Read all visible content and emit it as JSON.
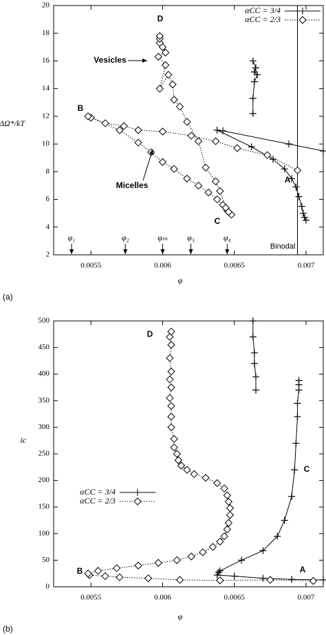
{
  "chart_data": [
    {
      "type": "line",
      "panel_label": "(a)",
      "xlabel": "φ",
      "ylabel": "ΔΩ*/kT",
      "xlim": [
        0.00524,
        0.00712
      ],
      "xticks": [
        0.0055,
        0.006,
        0.0065,
        0.007
      ],
      "ylim": [
        2,
        20
      ],
      "yticks": [
        2,
        4,
        6,
        8,
        10,
        12,
        14,
        16,
        18,
        20
      ],
      "legend": "upper right",
      "series": [
        {
          "name": "αCC = 3/4",
          "color": "#000000",
          "marker": "plus",
          "linestyle": "solid",
          "x": [
            0.00712,
            0.00688,
            0.00642,
            0.00638,
            0.00662,
            0.00677,
            0.00685,
            0.0069,
            0.00693,
            0.00695,
            0.00697,
            0.00698,
            0.00699,
            0.007,
            null,
            0.00663,
            0.00665,
            0.00664,
            0.00666,
            0.00664,
            0.00663,
            0.00663
          ],
          "values": [
            9.5,
            10.0,
            10.95,
            11.0,
            9.8,
            8.9,
            8.2,
            7.5,
            6.9,
            6.2,
            5.5,
            5.0,
            4.7,
            4.5,
            null,
            16.0,
            15.5,
            15.2,
            15.0,
            14.5,
            13.3,
            12.2
          ]
        },
        {
          "name": "αCC = 2/3",
          "color": "#000000",
          "marker": "diamond",
          "linestyle": "dotted",
          "x": [
            0.00694,
            0.00673,
            0.00652,
            0.00637,
            0.0062,
            0.006,
            0.00583,
            0.00573,
            0.0056,
            0.0055,
            0.00548,
            0.0057,
            0.00583,
            0.00592,
            0.006,
            0.00608,
            0.00617,
            0.00625,
            0.00632,
            0.00638,
            0.00642,
            0.00645,
            0.00647,
            0.00648,
            0.00646,
            0.00644,
            0.0064,
            0.00637,
            0.0063,
            0.00625,
            0.00617,
            0.00612,
            0.00608,
            0.00607,
            0.00604,
            0.00598,
            0.00602,
            0.00597,
            0.00602,
            0.006,
            0.00598,
            0.00598,
            0.00598
          ],
          "values": [
            8.1,
            9.2,
            9.7,
            10.2,
            10.6,
            10.9,
            11.0,
            11.3,
            11.5,
            11.9,
            12.0,
            11.0,
            10.1,
            9.4,
            8.7,
            8.2,
            7.5,
            7.0,
            6.5,
            6.0,
            5.6,
            5.2,
            5.0,
            4.9,
            5.1,
            5.4,
            6.6,
            7.3,
            8.3,
            10.2,
            11.6,
            12.7,
            13.2,
            14.3,
            15.0,
            14.0,
            15.7,
            16.3,
            16.6,
            17.0,
            17.3,
            17.6,
            17.8
          ]
        }
      ],
      "annotations": [
        "D",
        "Vesicles",
        "B",
        "Micelles",
        "C",
        "A"
      ],
      "phase_markers": [
        {
          "value": 0.005365,
          "label": "φ₁"
        },
        {
          "value": 0.00574,
          "label": "φ₂"
        },
        {
          "value": 0.006,
          "label": "φₘ"
        },
        {
          "value": 0.006197,
          "label": "φ₃"
        },
        {
          "value": 0.00645,
          "label": "φ₄"
        }
      ],
      "reference_lines": [
        {
          "value": 0.00694,
          "label": "Binodal"
        }
      ]
    },
    {
      "type": "line",
      "panel_label": "(b)",
      "xlabel": "φ",
      "ylabel": "ic",
      "xlim": [
        0.00524,
        0.00712
      ],
      "xticks": [
        0.0055,
        0.006,
        0.0065,
        0.007
      ],
      "ylim": [
        0,
        500
      ],
      "yticks": [
        0,
        50,
        100,
        150,
        200,
        250,
        300,
        350,
        400,
        450,
        500
      ],
      "legend": "center left",
      "series": [
        {
          "name": "αCC = 3/4",
          "color": "#000000",
          "marker": "plus",
          "linestyle": "solid",
          "x": [
            0.00712,
            0.0069,
            0.0067,
            0.0065,
            0.00638,
            0.00639,
            0.0064,
            0.00655,
            0.0067,
            0.0068,
            0.00685,
            0.0069,
            0.00692,
            0.00693,
            0.00694,
            0.00694,
            0.00695,
            0.00695,
            0.00695,
            null,
            0.00663,
            0.00663,
            0.00664,
            0.00664,
            0.00665,
            0.00665
          ],
          "values": [
            13,
            14,
            16,
            20,
            22,
            27,
            30,
            50,
            68,
            95,
            125,
            170,
            220,
            270,
            320,
            345,
            370,
            380,
            388,
            null,
            500,
            470,
            440,
            420,
            395,
            370
          ]
        },
        {
          "name": "αCC = 2/3",
          "color": "#000000",
          "marker": "diamond",
          "linestyle": "dotted",
          "x": [
            0.00705,
            0.00675,
            0.0064,
            0.00612,
            0.0059,
            0.0057,
            0.0056,
            0.00549,
            0.00548,
            0.00555,
            0.00568,
            0.00583,
            0.00597,
            0.0061,
            0.0062,
            0.00628,
            0.00635,
            0.0064,
            0.00643,
            0.00645,
            0.00646,
            0.00647,
            0.00647,
            0.00646,
            0.00645,
            0.00643,
            0.00638,
            0.0063,
            0.00622,
            0.00617,
            0.00613,
            0.00611,
            0.0061,
            0.00608,
            0.00608,
            0.00606,
            0.00606,
            0.00606,
            0.00605,
            0.00606,
            0.00605,
            0.00606,
            0.00605,
            0.00606,
            0.00605,
            0.00606
          ],
          "values": [
            11,
            13,
            12,
            13,
            16,
            18,
            20,
            22,
            25,
            30,
            35,
            40,
            45,
            50,
            57,
            65,
            75,
            85,
            95,
            108,
            120,
            135,
            148,
            160,
            172,
            185,
            195,
            205,
            212,
            220,
            228,
            238,
            250,
            262,
            278,
            300,
            320,
            340,
            355,
            375,
            390,
            405,
            430,
            455,
            470,
            480
          ]
        }
      ],
      "annotations": [
        "D",
        "B",
        "C",
        "A"
      ]
    }
  ]
}
